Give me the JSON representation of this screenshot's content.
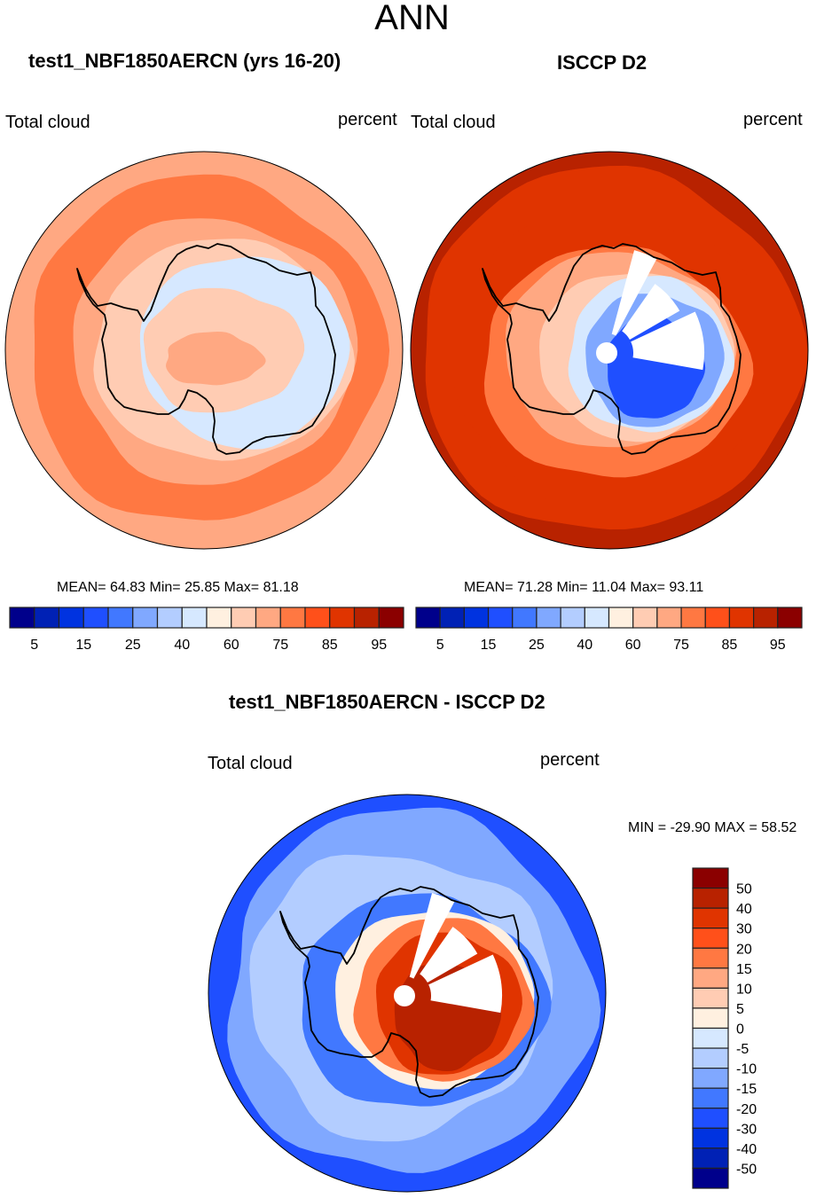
{
  "figure": {
    "title": "ANN"
  },
  "panels": [
    {
      "title": "test1_NBF1850AERCN (yrs 16-20)",
      "left_label": "Total cloud",
      "right_label": "percent",
      "stats": "MEAN=  64.83  Min=  25.85  Max=  81.18"
    },
    {
      "title": "ISCCP D2",
      "left_label": "Total cloud",
      "right_label": "percent",
      "stats": "MEAN=  71.28  Min=  11.04  Max=  93.11"
    },
    {
      "title": "test1_NBF1850AERCN - ISCCP D2",
      "left_label": "Total cloud",
      "right_label": "percent",
      "stats": "MIN = -29.90 MAX =  58.52"
    }
  ],
  "chart_data": [
    {
      "type": "heatmap",
      "projection": "polar stereographic (south pole)",
      "title": "test1_NBF1850AERCN (yrs 16-20)",
      "variable": "Total cloud",
      "units": "percent",
      "mean": 64.83,
      "min": 25.85,
      "max": 81.18,
      "colorbar": {
        "orientation": "horizontal",
        "levels": [
          5,
          10,
          15,
          20,
          25,
          30,
          40,
          50,
          60,
          65,
          75,
          80,
          85,
          90,
          95
        ],
        "tick_labels": [
          "5",
          "15",
          "25",
          "40",
          "60",
          "75",
          "85",
          "95"
        ],
        "colors": [
          "#00008b",
          "#0021b5",
          "#0033e0",
          "#1f4fff",
          "#4178ff",
          "#80a8ff",
          "#b3cdff",
          "#d6e8ff",
          "#fff0e0",
          "#ffccb3",
          "#ffa882",
          "#ff7842",
          "#ff501a",
          "#e03400",
          "#b82200",
          "#8b0000"
        ]
      },
      "regions": {
        "open_ocean": 75,
        "subpolar_ring": 65,
        "coastal_ring": 60,
        "ice_sheet": 40,
        "interior_plateau": 60,
        "interior_max": 75
      }
    },
    {
      "type": "heatmap",
      "projection": "polar stereographic (south pole)",
      "title": "ISCCP D2",
      "variable": "Total cloud",
      "units": "percent",
      "mean": 71.28,
      "min": 11.04,
      "max": 93.11,
      "colorbar": {
        "orientation": "horizontal",
        "levels": [
          5,
          10,
          15,
          20,
          25,
          30,
          40,
          50,
          60,
          65,
          75,
          80,
          85,
          90,
          95
        ],
        "tick_labels": [
          "5",
          "15",
          "25",
          "40",
          "60",
          "75",
          "85",
          "95"
        ],
        "colors": [
          "#00008b",
          "#0021b5",
          "#0033e0",
          "#1f4fff",
          "#4178ff",
          "#80a8ff",
          "#b3cdff",
          "#d6e8ff",
          "#fff0e0",
          "#ffccb3",
          "#ffa882",
          "#ff7842",
          "#ff501a",
          "#e03400",
          "#b82200",
          "#8b0000"
        ]
      },
      "regions": {
        "open_ocean": 90,
        "subpolar_ring": 85,
        "coastal_ring": 75,
        "west_antarctica": 60,
        "east_antarctica_interior": 15
      },
      "missing_data": "white wedges near the pole"
    },
    {
      "type": "heatmap",
      "projection": "polar stereographic (south pole)",
      "title": "test1_NBF1850AERCN - ISCCP D2",
      "variable": "Total cloud",
      "units": "percent",
      "min": -29.9,
      "max": 58.52,
      "colorbar": {
        "orientation": "vertical",
        "levels": [
          -50,
          -40,
          -30,
          -20,
          -15,
          -10,
          -5,
          0,
          5,
          10,
          15,
          20,
          30,
          40,
          50
        ],
        "tick_labels": [
          "50",
          "40",
          "30",
          "20",
          "15",
          "10",
          "5",
          "0",
          "-5",
          "-10",
          "-15",
          "-20",
          "-30",
          "-40",
          "-50"
        ],
        "colors": [
          "#8b0000",
          "#b82200",
          "#e03400",
          "#ff501a",
          "#ff7842",
          "#ffa882",
          "#ffccb3",
          "#fff0e0",
          "#d6e8ff",
          "#b3cdff",
          "#80a8ff",
          "#4178ff",
          "#1f4fff",
          "#0033e0",
          "#0021b5",
          "#00008b"
        ]
      },
      "regions": {
        "open_ocean": -15,
        "subpolar_ring": -10,
        "coastal_ring": -20,
        "east_antarctica_interior": 50
      },
      "missing_data": "white wedges near the pole"
    }
  ]
}
